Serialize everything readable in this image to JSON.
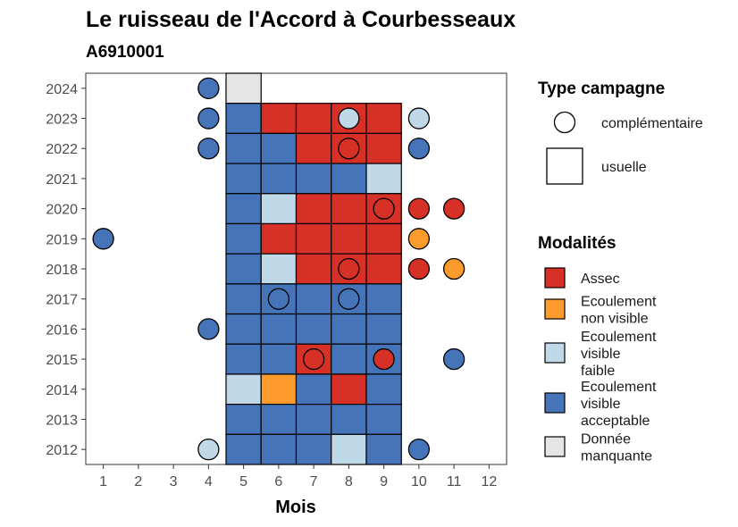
{
  "chart_data": {
    "type": "heatmap",
    "title": "Le ruisseau de l'Accord à Courbesseaux",
    "subtitle": "A6910001",
    "xlabel": "Mois",
    "ylabel": "",
    "x_ticks": [
      "1",
      "2",
      "3",
      "4",
      "5",
      "6",
      "7",
      "8",
      "9",
      "10",
      "11",
      "12"
    ],
    "y_ticks": [
      "2012",
      "2013",
      "2014",
      "2015",
      "2016",
      "2017",
      "2018",
      "2019",
      "2020",
      "2021",
      "2022",
      "2023",
      "2024"
    ],
    "xlim": [
      0.5,
      12.5
    ],
    "ylim": [
      2011.5,
      2024.5
    ],
    "grid": false,
    "legend_position": "right",
    "legend_shape_title": "Type campagne",
    "legend_shapes": [
      {
        "shape": "circle",
        "label": "complémentaire"
      },
      {
        "shape": "square",
        "label": "usuelle"
      }
    ],
    "legend_color_title": "Modalités",
    "categories": [
      {
        "key": "assec",
        "lines": [
          "Assec"
        ],
        "color": "#d73027"
      },
      {
        "key": "nonvis",
        "lines": [
          "Ecoulement",
          "non visible"
        ],
        "color": "#fd9b2c"
      },
      {
        "key": "faible",
        "lines": [
          "Ecoulement",
          "visible",
          "faible"
        ],
        "color": "#bfd9e8"
      },
      {
        "key": "accept",
        "lines": [
          "Ecoulement",
          "visible",
          "acceptable"
        ],
        "color": "#4674b8"
      },
      {
        "key": "manq",
        "lines": [
          "Donnée",
          "manquante"
        ],
        "color": "#e5e5e5"
      }
    ],
    "usuelle": [
      {
        "year": 2024,
        "month": 5,
        "cat": "manq"
      },
      {
        "year": 2023,
        "month": 5,
        "cat": "accept"
      },
      {
        "year": 2023,
        "month": 6,
        "cat": "assec"
      },
      {
        "year": 2023,
        "month": 7,
        "cat": "assec"
      },
      {
        "year": 2023,
        "month": 8,
        "cat": "assec"
      },
      {
        "year": 2023,
        "month": 9,
        "cat": "assec"
      },
      {
        "year": 2022,
        "month": 5,
        "cat": "accept"
      },
      {
        "year": 2022,
        "month": 6,
        "cat": "accept"
      },
      {
        "year": 2022,
        "month": 7,
        "cat": "assec"
      },
      {
        "year": 2022,
        "month": 8,
        "cat": "assec"
      },
      {
        "year": 2022,
        "month": 9,
        "cat": "assec"
      },
      {
        "year": 2021,
        "month": 5,
        "cat": "accept"
      },
      {
        "year": 2021,
        "month": 6,
        "cat": "accept"
      },
      {
        "year": 2021,
        "month": 7,
        "cat": "accept"
      },
      {
        "year": 2021,
        "month": 8,
        "cat": "accept"
      },
      {
        "year": 2021,
        "month": 9,
        "cat": "faible"
      },
      {
        "year": 2020,
        "month": 5,
        "cat": "accept"
      },
      {
        "year": 2020,
        "month": 6,
        "cat": "faible"
      },
      {
        "year": 2020,
        "month": 7,
        "cat": "assec"
      },
      {
        "year": 2020,
        "month": 8,
        "cat": "assec"
      },
      {
        "year": 2020,
        "month": 9,
        "cat": "assec"
      },
      {
        "year": 2019,
        "month": 5,
        "cat": "accept"
      },
      {
        "year": 2019,
        "month": 6,
        "cat": "assec"
      },
      {
        "year": 2019,
        "month": 7,
        "cat": "assec"
      },
      {
        "year": 2019,
        "month": 8,
        "cat": "assec"
      },
      {
        "year": 2019,
        "month": 9,
        "cat": "assec"
      },
      {
        "year": 2018,
        "month": 5,
        "cat": "accept"
      },
      {
        "year": 2018,
        "month": 6,
        "cat": "faible"
      },
      {
        "year": 2018,
        "month": 7,
        "cat": "assec"
      },
      {
        "year": 2018,
        "month": 8,
        "cat": "assec"
      },
      {
        "year": 2018,
        "month": 9,
        "cat": "assec"
      },
      {
        "year": 2017,
        "month": 5,
        "cat": "accept"
      },
      {
        "year": 2017,
        "month": 6,
        "cat": "accept"
      },
      {
        "year": 2017,
        "month": 7,
        "cat": "accept"
      },
      {
        "year": 2017,
        "month": 8,
        "cat": "accept"
      },
      {
        "year": 2017,
        "month": 9,
        "cat": "accept"
      },
      {
        "year": 2016,
        "month": 5,
        "cat": "accept"
      },
      {
        "year": 2016,
        "month": 6,
        "cat": "accept"
      },
      {
        "year": 2016,
        "month": 7,
        "cat": "accept"
      },
      {
        "year": 2016,
        "month": 8,
        "cat": "accept"
      },
      {
        "year": 2016,
        "month": 9,
        "cat": "accept"
      },
      {
        "year": 2015,
        "month": 5,
        "cat": "accept"
      },
      {
        "year": 2015,
        "month": 6,
        "cat": "accept"
      },
      {
        "year": 2015,
        "month": 7,
        "cat": "assec"
      },
      {
        "year": 2015,
        "month": 8,
        "cat": "accept"
      },
      {
        "year": 2015,
        "month": 9,
        "cat": "accept"
      },
      {
        "year": 2014,
        "month": 5,
        "cat": "faible"
      },
      {
        "year": 2014,
        "month": 6,
        "cat": "nonvis"
      },
      {
        "year": 2014,
        "month": 7,
        "cat": "accept"
      },
      {
        "year": 2014,
        "month": 8,
        "cat": "assec"
      },
      {
        "year": 2014,
        "month": 9,
        "cat": "accept"
      },
      {
        "year": 2013,
        "month": 5,
        "cat": "accept"
      },
      {
        "year": 2013,
        "month": 6,
        "cat": "accept"
      },
      {
        "year": 2013,
        "month": 7,
        "cat": "accept"
      },
      {
        "year": 2013,
        "month": 8,
        "cat": "accept"
      },
      {
        "year": 2013,
        "month": 9,
        "cat": "accept"
      },
      {
        "year": 2012,
        "month": 5,
        "cat": "accept"
      },
      {
        "year": 2012,
        "month": 6,
        "cat": "accept"
      },
      {
        "year": 2012,
        "month": 7,
        "cat": "accept"
      },
      {
        "year": 2012,
        "month": 8,
        "cat": "faible"
      },
      {
        "year": 2012,
        "month": 9,
        "cat": "accept"
      }
    ],
    "complementaire": [
      {
        "year": 2024,
        "month": 4,
        "cat": "accept"
      },
      {
        "year": 2023,
        "month": 4,
        "cat": "accept"
      },
      {
        "year": 2023,
        "month": 8,
        "cat": "faible"
      },
      {
        "year": 2023,
        "month": 10,
        "cat": "faible"
      },
      {
        "year": 2022,
        "month": 4,
        "cat": "accept"
      },
      {
        "year": 2022,
        "month": 8,
        "cat": "assec"
      },
      {
        "year": 2022,
        "month": 10,
        "cat": "accept"
      },
      {
        "year": 2020,
        "month": 9,
        "cat": "assec"
      },
      {
        "year": 2020,
        "month": 10,
        "cat": "assec"
      },
      {
        "year": 2020,
        "month": 11,
        "cat": "assec"
      },
      {
        "year": 2019,
        "month": 1,
        "cat": "accept"
      },
      {
        "year": 2019,
        "month": 10,
        "cat": "nonvis"
      },
      {
        "year": 2018,
        "month": 8,
        "cat": "assec"
      },
      {
        "year": 2018,
        "month": 10,
        "cat": "assec"
      },
      {
        "year": 2018,
        "month": 11,
        "cat": "nonvis"
      },
      {
        "year": 2017,
        "month": 6,
        "cat": "accept"
      },
      {
        "year": 2017,
        "month": 8,
        "cat": "accept"
      },
      {
        "year": 2016,
        "month": 4,
        "cat": "accept"
      },
      {
        "year": 2015,
        "month": 7,
        "cat": "assec"
      },
      {
        "year": 2015,
        "month": 9,
        "cat": "assec"
      },
      {
        "year": 2015,
        "month": 11,
        "cat": "accept"
      },
      {
        "year": 2012,
        "month": 4,
        "cat": "faible"
      },
      {
        "year": 2012,
        "month": 10,
        "cat": "accept"
      }
    ]
  }
}
